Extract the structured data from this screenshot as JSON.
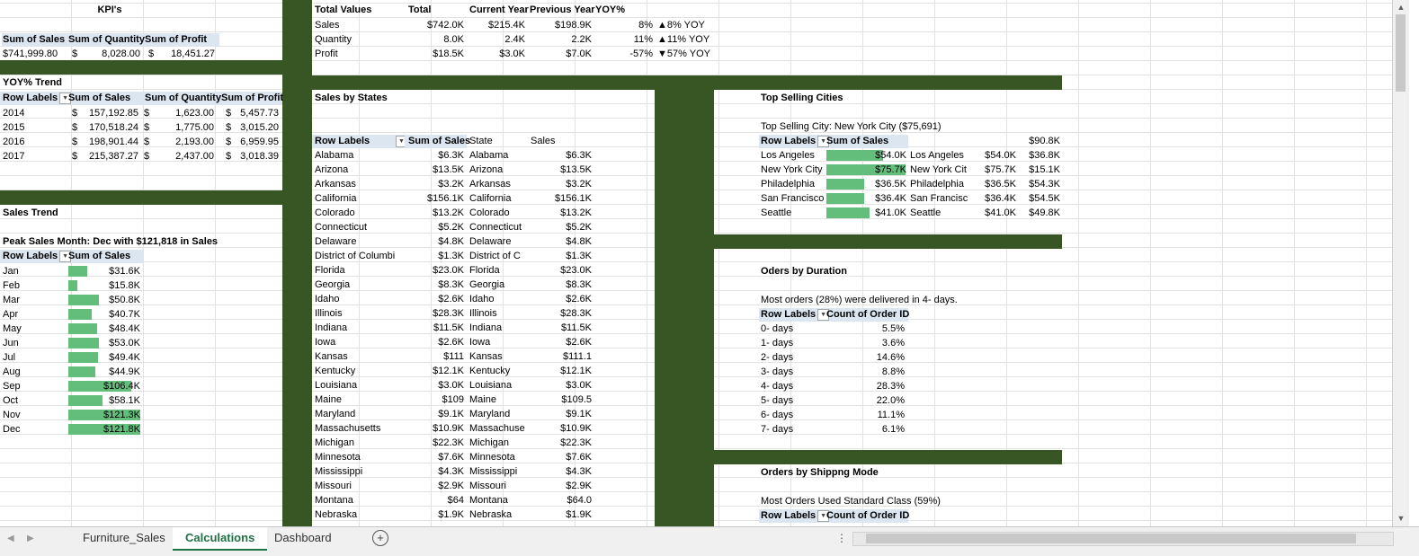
{
  "kpis": {
    "title": "KPI's",
    "headers": [
      "Sum of Sales",
      "Sum of Quantity",
      "Sum of Profit"
    ],
    "sales": "$741,999.80",
    "qty_symbol": "$",
    "qty": "8,028.00",
    "profit_symbol": "$",
    "profit": "18,451.27"
  },
  "yoy_trend": {
    "title": "YOY% Trend",
    "headers": [
      "Row Labels",
      "Sum of Sales",
      "Sum of Quantity",
      "Sum of Profit"
    ],
    "rows": [
      {
        "year": "2014",
        "sales": "157,192.85",
        "qty": "1,623.00",
        "profit": "5,457.73"
      },
      {
        "year": "2015",
        "sales": "170,518.24",
        "qty": "1,775.00",
        "profit": "3,015.20"
      },
      {
        "year": "2016",
        "sales": "198,901.44",
        "qty": "2,193.00",
        "profit": "6,959.95"
      },
      {
        "year": "2017",
        "sales": "215,387.27",
        "qty": "2,437.00",
        "profit": "3,018.39"
      }
    ]
  },
  "sales_trend": {
    "title": "Sales Trend",
    "peak": "Peak Sales Month: Dec with $121,818 in Sales",
    "headers": [
      "Row Labels",
      "Sum of Sales"
    ],
    "rows": [
      {
        "m": "Jan",
        "v": "$31.6K",
        "frac": 0.26
      },
      {
        "m": "Feb",
        "v": "$15.8K",
        "frac": 0.13
      },
      {
        "m": "Mar",
        "v": "$50.8K",
        "frac": 0.42
      },
      {
        "m": "Apr",
        "v": "$40.7K",
        "frac": 0.33
      },
      {
        "m": "May",
        "v": "$48.4K",
        "frac": 0.4
      },
      {
        "m": "Jun",
        "v": "$53.0K",
        "frac": 0.43
      },
      {
        "m": "Jul",
        "v": "$49.4K",
        "frac": 0.41
      },
      {
        "m": "Aug",
        "v": "$44.9K",
        "frac": 0.37
      },
      {
        "m": "Sep",
        "v": "$106.4K",
        "frac": 0.87
      },
      {
        "m": "Oct",
        "v": "$58.1K",
        "frac": 0.48
      },
      {
        "m": "Nov",
        "v": "$121.3K",
        "frac": 1.0
      },
      {
        "m": "Dec",
        "v": "$121.8K",
        "frac": 1.0
      }
    ]
  },
  "total_values": {
    "headers": [
      "Total Values",
      "Total",
      "Current Year",
      "Previous Year",
      "YOY%"
    ],
    "rows": [
      {
        "label": "Sales",
        "total": "$742.0K",
        "cy": "$215.4K",
        "py": "$198.9K",
        "yoy": "8%",
        "ind": "▲8% YOY"
      },
      {
        "label": "Quantity",
        "total": "8.0K",
        "cy": "2.4K",
        "py": "2.2K",
        "yoy": "11%",
        "ind": "▲11% YOY"
      },
      {
        "label": "Profit",
        "total": "$18.5K",
        "cy": "$3.0K",
        "py": "$7.0K",
        "yoy": "-57%",
        "ind": "▼57% YOY"
      }
    ]
  },
  "sales_by_states": {
    "title": "Sales by States",
    "headers": [
      "Row Labels",
      "Sum of Sales",
      "State",
      "Sales"
    ],
    "rows": [
      {
        "s": "Alabama",
        "v": "$6.3K",
        "s2": "Alabama",
        "v2": "$6.3K"
      },
      {
        "s": "Arizona",
        "v": "$13.5K",
        "s2": "Arizona",
        "v2": "$13.5K"
      },
      {
        "s": "Arkansas",
        "v": "$3.2K",
        "s2": "Arkansas",
        "v2": "$3.2K"
      },
      {
        "s": "California",
        "v": "$156.1K",
        "s2": "California",
        "v2": "$156.1K"
      },
      {
        "s": "Colorado",
        "v": "$13.2K",
        "s2": "Colorado",
        "v2": "$13.2K"
      },
      {
        "s": "Connecticut",
        "v": "$5.2K",
        "s2": "Connecticut",
        "v2": "$5.2K"
      },
      {
        "s": "Delaware",
        "v": "$4.8K",
        "s2": "Delaware",
        "v2": "$4.8K"
      },
      {
        "s": "District of Columbi",
        "v": "$1.3K",
        "s2": "District of C",
        "v2": "$1.3K"
      },
      {
        "s": "Florida",
        "v": "$23.0K",
        "s2": "Florida",
        "v2": "$23.0K"
      },
      {
        "s": "Georgia",
        "v": "$8.3K",
        "s2": "Georgia",
        "v2": "$8.3K"
      },
      {
        "s": "Idaho",
        "v": "$2.6K",
        "s2": "Idaho",
        "v2": "$2.6K"
      },
      {
        "s": "Illinois",
        "v": "$28.3K",
        "s2": "Illinois",
        "v2": "$28.3K"
      },
      {
        "s": "Indiana",
        "v": "$11.5K",
        "s2": "Indiana",
        "v2": "$11.5K"
      },
      {
        "s": "Iowa",
        "v": "$2.6K",
        "s2": "Iowa",
        "v2": "$2.6K"
      },
      {
        "s": "Kansas",
        "v": "$111",
        "s2": "Kansas",
        "v2": "$111.1"
      },
      {
        "s": "Kentucky",
        "v": "$12.1K",
        "s2": "Kentucky",
        "v2": "$12.1K"
      },
      {
        "s": "Louisiana",
        "v": "$3.0K",
        "s2": "Louisiana",
        "v2": "$3.0K"
      },
      {
        "s": "Maine",
        "v": "$109",
        "s2": "Maine",
        "v2": "$109.5"
      },
      {
        "s": "Maryland",
        "v": "$9.1K",
        "s2": "Maryland",
        "v2": "$9.1K"
      },
      {
        "s": "Massachusetts",
        "v": "$10.9K",
        "s2": "Massachuse",
        "v2": "$10.9K"
      },
      {
        "s": "Michigan",
        "v": "$22.3K",
        "s2": "Michigan",
        "v2": "$22.3K"
      },
      {
        "s": "Minnesota",
        "v": "$7.6K",
        "s2": "Minnesota",
        "v2": "$7.6K"
      },
      {
        "s": "Mississippi",
        "v": "$4.3K",
        "s2": "Mississippi",
        "v2": "$4.3K"
      },
      {
        "s": "Missouri",
        "v": "$2.9K",
        "s2": "Missouri",
        "v2": "$2.9K"
      },
      {
        "s": "Montana",
        "v": "$64",
        "s2": "Montana",
        "v2": "$64.0"
      },
      {
        "s": "Nebraska",
        "v": "$1.9K",
        "s2": "Nebraska",
        "v2": "$1.9K"
      }
    ]
  },
  "top_cities": {
    "title": "Top Selling Cities",
    "subtitle": "Top Selling City: New York City ($75,691)",
    "headers": [
      "Row Labels",
      "Sum of Sales"
    ],
    "extra_top": "$90.8K",
    "rows": [
      {
        "c": "Los Angeles",
        "v": "$54.0K",
        "frac": 0.713,
        "c2": "Los Angeles",
        "v2": "$54.0K",
        "v3": "$36.8K"
      },
      {
        "c": "New York City",
        "v": "$75.7K",
        "frac": 1.0,
        "c2": "New York Cit",
        "v2": "$75.7K",
        "v3": "$15.1K"
      },
      {
        "c": "Philadelphia",
        "v": "$36.5K",
        "frac": 0.482,
        "c2": "Philadelphia",
        "v2": "$36.5K",
        "v3": "$54.3K"
      },
      {
        "c": "San Francisco",
        "v": "$36.4K",
        "frac": 0.481,
        "c2": "San Francisc",
        "v2": "$36.4K",
        "v3": "$54.5K"
      },
      {
        "c": "Seattle",
        "v": "$41.0K",
        "frac": 0.542,
        "c2": "Seattle",
        "v2": "$41.0K",
        "v3": "$49.8K"
      }
    ]
  },
  "orders_duration": {
    "title": "Oders by Duration",
    "subtitle": "Most orders (28%) were delivered in 4- days.",
    "headers": [
      "Row Labels",
      "Count of Order ID"
    ],
    "rows": [
      {
        "d": "0- days",
        "v": "5.5%"
      },
      {
        "d": "1- days",
        "v": "3.6%"
      },
      {
        "d": "2- days",
        "v": "14.6%"
      },
      {
        "d": "3- days",
        "v": "8.8%"
      },
      {
        "d": "4- days",
        "v": "28.3%"
      },
      {
        "d": "5- days",
        "v": "22.0%"
      },
      {
        "d": "6- days",
        "v": "11.1%"
      },
      {
        "d": "7- days",
        "v": "6.1%"
      }
    ]
  },
  "orders_shipping": {
    "title": "Orders by Shippng Mode",
    "subtitle": "Most Orders Used Standard Class (59%)",
    "headers": [
      "Row Labels",
      "Count of Order ID"
    ]
  },
  "tabs": {
    "sheet1": "Furniture_Sales",
    "sheet2": "Calculations",
    "sheet3": "Dashboard",
    "add": "+"
  },
  "colors": {
    "band": "#375623",
    "bar": "#63be7b",
    "header": "#dce6f1",
    "active_tab": "#1e7145"
  },
  "icons": {
    "filter": "chevron-down-icon",
    "sort": "filter-sort-icon"
  }
}
